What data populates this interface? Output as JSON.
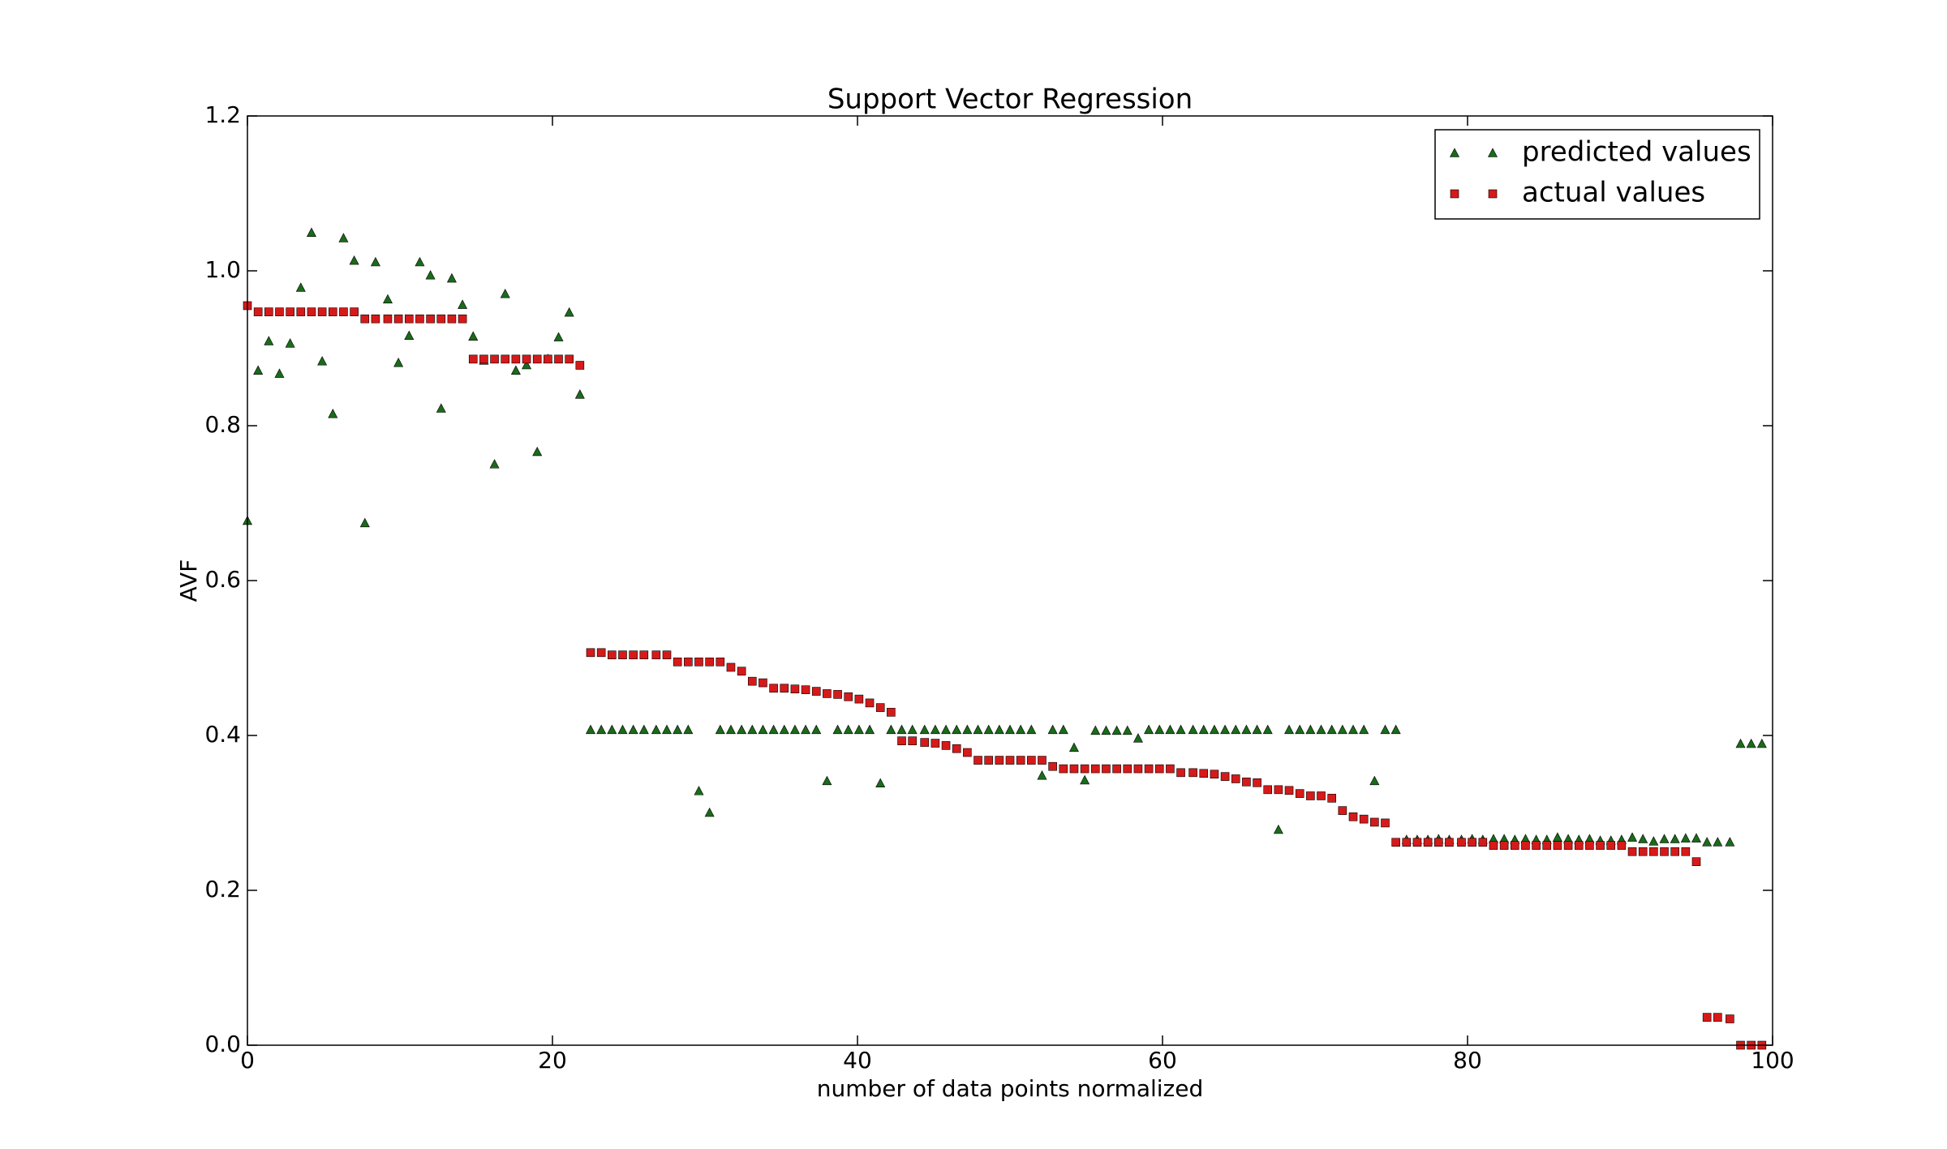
{
  "chart_data": {
    "type": "scatter",
    "title": "Support Vector Regression",
    "x_label": "number of data points normalized",
    "y_label": "AVF",
    "x": [
      0,
      0.7,
      1.4,
      2.1,
      2.8,
      3.5,
      4.2,
      4.9,
      5.6,
      6.3,
      7.0,
      7.7,
      8.4,
      9.2,
      9.9,
      10.6,
      11.3,
      12.0,
      12.7,
      13.4,
      14.1,
      14.8,
      15.5,
      16.2,
      16.9,
      17.6,
      18.3,
      19.0,
      19.7,
      20.4,
      21.1,
      21.8,
      22.5,
      23.2,
      23.9,
      24.6,
      25.3,
      26.0,
      26.8,
      27.5,
      28.2,
      28.9,
      29.6,
      30.3,
      31.0,
      31.7,
      32.4,
      33.1,
      33.8,
      34.5,
      35.2,
      35.9,
      36.6,
      37.3,
      38.0,
      38.7,
      39.4,
      40.1,
      40.8,
      41.5,
      42.2,
      42.9,
      43.6,
      44.4,
      45.1,
      45.8,
      46.5,
      47.2,
      47.9,
      48.6,
      49.3,
      50.0,
      50.7,
      51.4,
      52.1,
      52.8,
      53.5,
      54.2,
      54.9,
      55.6,
      56.3,
      57.0,
      57.7,
      58.4,
      59.1,
      59.8,
      60.5,
      61.2,
      62.0,
      62.7,
      63.4,
      64.1,
      64.8,
      65.5,
      66.2,
      66.9,
      67.6,
      68.3,
      69.0,
      69.7,
      70.4,
      71.1,
      71.8,
      72.5,
      73.2,
      73.9,
      74.6,
      75.3,
      76.0,
      76.7,
      77.4,
      78.1,
      78.8,
      79.6,
      80.3,
      81.0,
      81.7,
      82.4,
      83.1,
      83.8,
      84.5,
      85.2,
      85.9,
      86.6,
      87.3,
      88.0,
      88.7,
      89.4,
      90.1,
      90.8,
      91.5,
      92.2,
      92.9,
      93.6,
      94.3,
      95.0,
      95.7,
      96.4,
      97.2,
      97.9,
      98.6,
      99.3
    ],
    "series": [
      {
        "name": "predicted values",
        "color": "#1a6b1a",
        "marker": "triangle",
        "values": [
          0.677,
          0.871,
          0.909,
          0.867,
          0.906,
          0.978,
          1.049,
          0.883,
          0.815,
          1.042,
          1.013,
          0.674,
          1.011,
          0.963,
          0.881,
          0.916,
          1.011,
          0.994,
          0.822,
          0.99,
          0.956,
          0.915,
          0.884,
          0.75,
          0.97,
          0.871,
          0.878,
          0.766,
          0.886,
          0.914,
          0.946,
          0.84,
          0.407,
          0.407,
          0.407,
          0.407,
          0.407,
          0.407,
          0.407,
          0.407,
          0.407,
          0.407,
          0.328,
          0.3,
          0.407,
          0.407,
          0.407,
          0.407,
          0.407,
          0.407,
          0.407,
          0.407,
          0.407,
          0.407,
          0.341,
          0.407,
          0.407,
          0.407,
          0.407,
          0.338,
          0.407,
          0.407,
          0.407,
          0.407,
          0.407,
          0.407,
          0.407,
          0.407,
          0.407,
          0.407,
          0.407,
          0.407,
          0.407,
          0.407,
          0.348,
          0.407,
          0.407,
          0.384,
          0.342,
          0.406,
          0.406,
          0.406,
          0.406,
          0.396,
          0.407,
          0.407,
          0.407,
          0.407,
          0.407,
          0.407,
          0.407,
          0.407,
          0.407,
          0.407,
          0.407,
          0.407,
          0.278,
          0.407,
          0.407,
          0.407,
          0.407,
          0.407,
          0.407,
          0.407,
          0.407,
          0.341,
          0.407,
          0.407,
          0.265,
          0.265,
          0.265,
          0.266,
          0.265,
          0.265,
          0.266,
          0.265,
          0.266,
          0.266,
          0.265,
          0.266,
          0.265,
          0.265,
          0.268,
          0.266,
          0.265,
          0.266,
          0.264,
          0.264,
          0.265,
          0.268,
          0.266,
          0.263,
          0.266,
          0.266,
          0.267,
          0.267,
          0.262,
          0.262,
          0.262,
          0.389,
          0.389,
          0.389
        ]
      },
      {
        "name": "actual values",
        "color": "#d61a1a",
        "marker": "square",
        "values": [
          0.955,
          0.947,
          0.947,
          0.947,
          0.947,
          0.947,
          0.947,
          0.947,
          0.947,
          0.947,
          0.947,
          0.938,
          0.938,
          0.938,
          0.938,
          0.938,
          0.938,
          0.938,
          0.938,
          0.938,
          0.938,
          0.886,
          0.886,
          0.886,
          0.886,
          0.886,
          0.886,
          0.886,
          0.886,
          0.886,
          0.886,
          0.878,
          0.507,
          0.507,
          0.504,
          0.504,
          0.504,
          0.504,
          0.504,
          0.504,
          0.495,
          0.495,
          0.495,
          0.495,
          0.495,
          0.488,
          0.483,
          0.47,
          0.468,
          0.461,
          0.461,
          0.46,
          0.459,
          0.457,
          0.454,
          0.453,
          0.45,
          0.447,
          0.442,
          0.436,
          0.43,
          0.393,
          0.393,
          0.391,
          0.39,
          0.387,
          0.383,
          0.378,
          0.368,
          0.368,
          0.368,
          0.368,
          0.368,
          0.368,
          0.368,
          0.36,
          0.357,
          0.357,
          0.357,
          0.357,
          0.357,
          0.357,
          0.357,
          0.357,
          0.357,
          0.357,
          0.357,
          0.352,
          0.352,
          0.351,
          0.35,
          0.347,
          0.344,
          0.34,
          0.339,
          0.33,
          0.33,
          0.329,
          0.325,
          0.322,
          0.322,
          0.319,
          0.303,
          0.295,
          0.292,
          0.288,
          0.287,
          0.262,
          0.262,
          0.262,
          0.262,
          0.262,
          0.262,
          0.262,
          0.262,
          0.262,
          0.258,
          0.258,
          0.258,
          0.258,
          0.258,
          0.258,
          0.258,
          0.258,
          0.258,
          0.258,
          0.258,
          0.258,
          0.258,
          0.25,
          0.25,
          0.25,
          0.25,
          0.25,
          0.25,
          0.237,
          0.036,
          0.036,
          0.034,
          0,
          0,
          0
        ]
      }
    ],
    "xlim": [
      0,
      100
    ],
    "ylim": [
      0,
      1.2
    ],
    "xticks": [
      0,
      20,
      40,
      60,
      80,
      100
    ],
    "yticks": [
      {
        "value": 0,
        "label": "0.0"
      },
      0.2,
      0.4,
      0.6,
      0.8,
      {
        "value": 1,
        "label": "1.0"
      },
      1.2
    ],
    "grid": false,
    "legend": "upper right"
  }
}
